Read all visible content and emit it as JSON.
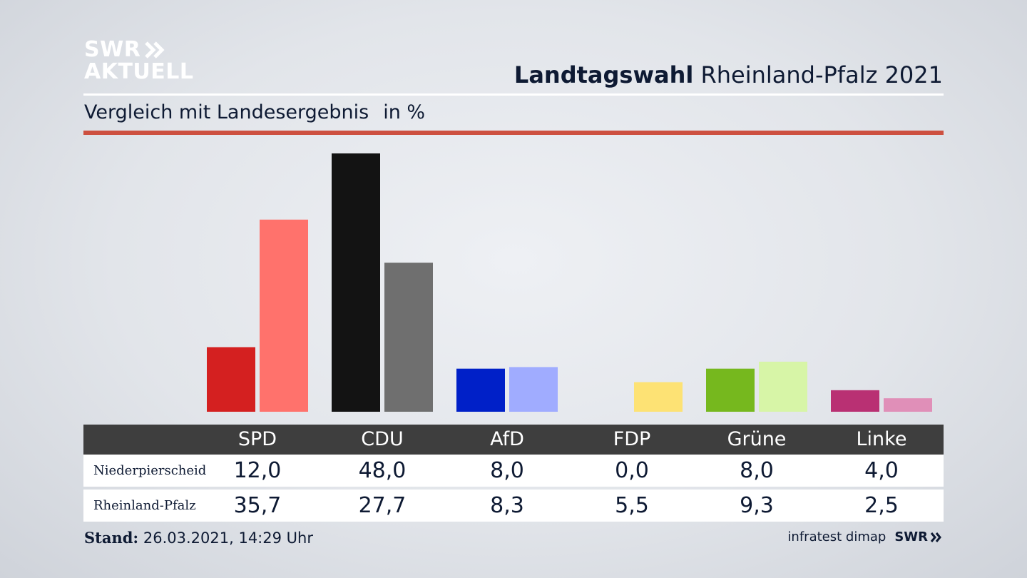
{
  "logo": {
    "line1": "SWR",
    "line2": "AKTUELL"
  },
  "header": {
    "title_bold": "Landtagswahl",
    "title_rest": "Rheinland-Pfalz 2021"
  },
  "subtitle": {
    "text": "Vergleich mit Landesergebnis",
    "unit": "in %"
  },
  "chart_data": {
    "type": "bar",
    "categories": [
      "SPD",
      "CDU",
      "AfD",
      "FDP",
      "Grüne",
      "Linke"
    ],
    "series": [
      {
        "name": "Niederpierscheid",
        "values": [
          12.0,
          48.0,
          8.0,
          0.0,
          8.0,
          4.0
        ],
        "colors": [
          "#d42020",
          "#131313",
          "#0020c8",
          "#fde274",
          "#76b81e",
          "#b93073"
        ]
      },
      {
        "name": "Rheinland-Pfalz",
        "values": [
          35.7,
          27.7,
          8.3,
          5.5,
          9.3,
          2.5
        ],
        "colors": [
          "#ff726c",
          "#6f6f6f",
          "#a0acff",
          "#fde274",
          "#d7f5a7",
          "#e08fb8"
        ]
      }
    ],
    "ylim": [
      0,
      48
    ],
    "grid": false,
    "legend": "table-below"
  },
  "table": {
    "headers": [
      "SPD",
      "CDU",
      "AfD",
      "FDP",
      "Grüne",
      "Linke"
    ],
    "rows": [
      {
        "label": "Niederpierscheid",
        "values": [
          "12,0",
          "48,0",
          "8,0",
          "0,0",
          "8,0",
          "4,0"
        ]
      },
      {
        "label": "Rheinland-Pfalz",
        "values": [
          "35,7",
          "27,7",
          "8,3",
          "5,5",
          "9,3",
          "2,5"
        ]
      }
    ]
  },
  "footer": {
    "stand_label": "Stand:",
    "stand_value": "26.03.2021, 14:29 Uhr",
    "source": "infratest dimap",
    "brand": "SWR"
  }
}
